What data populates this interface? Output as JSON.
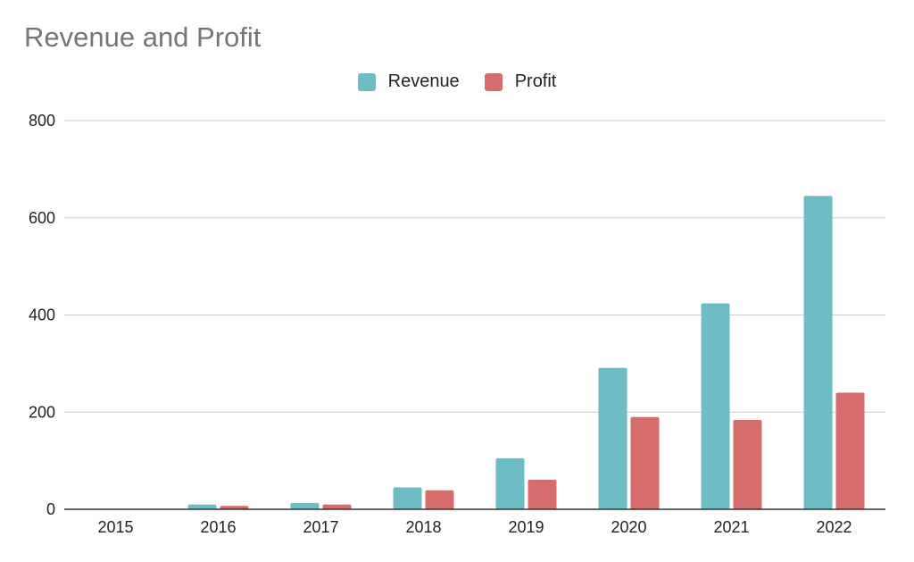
{
  "chart_data": {
    "type": "bar",
    "title": "Revenue and Profit",
    "xlabel": "",
    "ylabel": "",
    "categories": [
      "2015",
      "2016",
      "2017",
      "2018",
      "2019",
      "2020",
      "2021",
      "2022"
    ],
    "series": [
      {
        "name": "Revenue",
        "color": "#6cbec4",
        "values": [
          0,
          10,
          13,
          45,
          105,
          291,
          424,
          645
        ]
      },
      {
        "name": "Profit",
        "color": "#d66c6b",
        "values": [
          0,
          7,
          10,
          39,
          61,
          190,
          184,
          240
        ]
      }
    ],
    "ylim": [
      0,
      800
    ],
    "yticks": [
      0,
      200,
      400,
      600,
      800
    ],
    "grid": true,
    "legend_position": "top-center"
  }
}
